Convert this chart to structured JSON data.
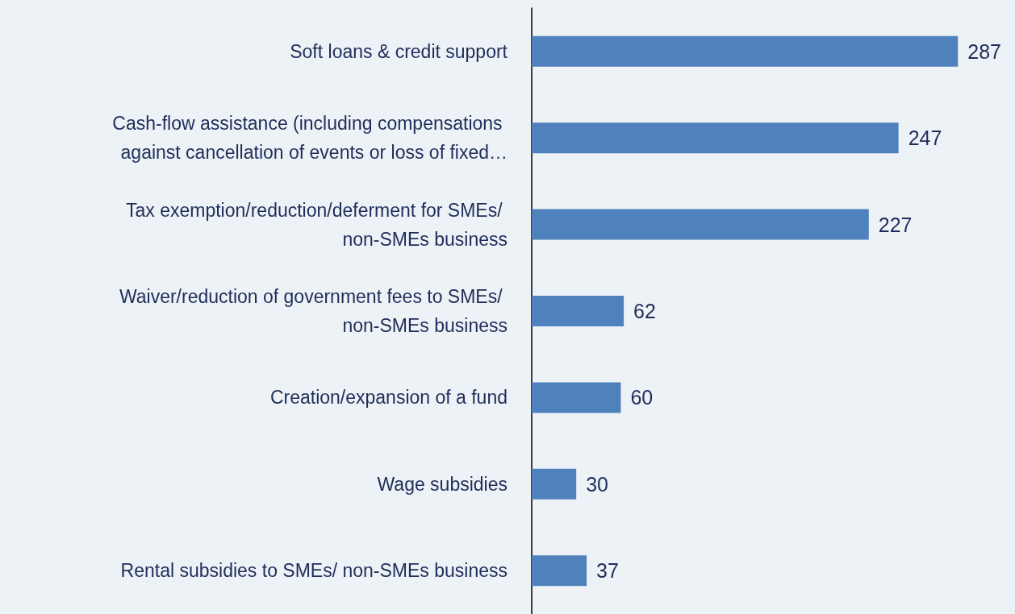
{
  "chart_data": {
    "type": "bar",
    "orientation": "horizontal",
    "categories": [
      "Soft loans & credit support",
      "Cash-flow assistance (including compensations against cancellation of events or loss of fixed…",
      "Tax exemption/reduction/deferment for SMEs/ non-SMEs business",
      "Waiver/reduction of government fees to SMEs/ non-SMEs business",
      "Creation/expansion of a fund",
      "Wage subsidies",
      "Rental subsidies to SMEs/ non-SMEs business"
    ],
    "values": [
      287,
      247,
      227,
      62,
      60,
      30,
      37
    ],
    "color": "#4f81bd",
    "data_labels": true
  }
}
